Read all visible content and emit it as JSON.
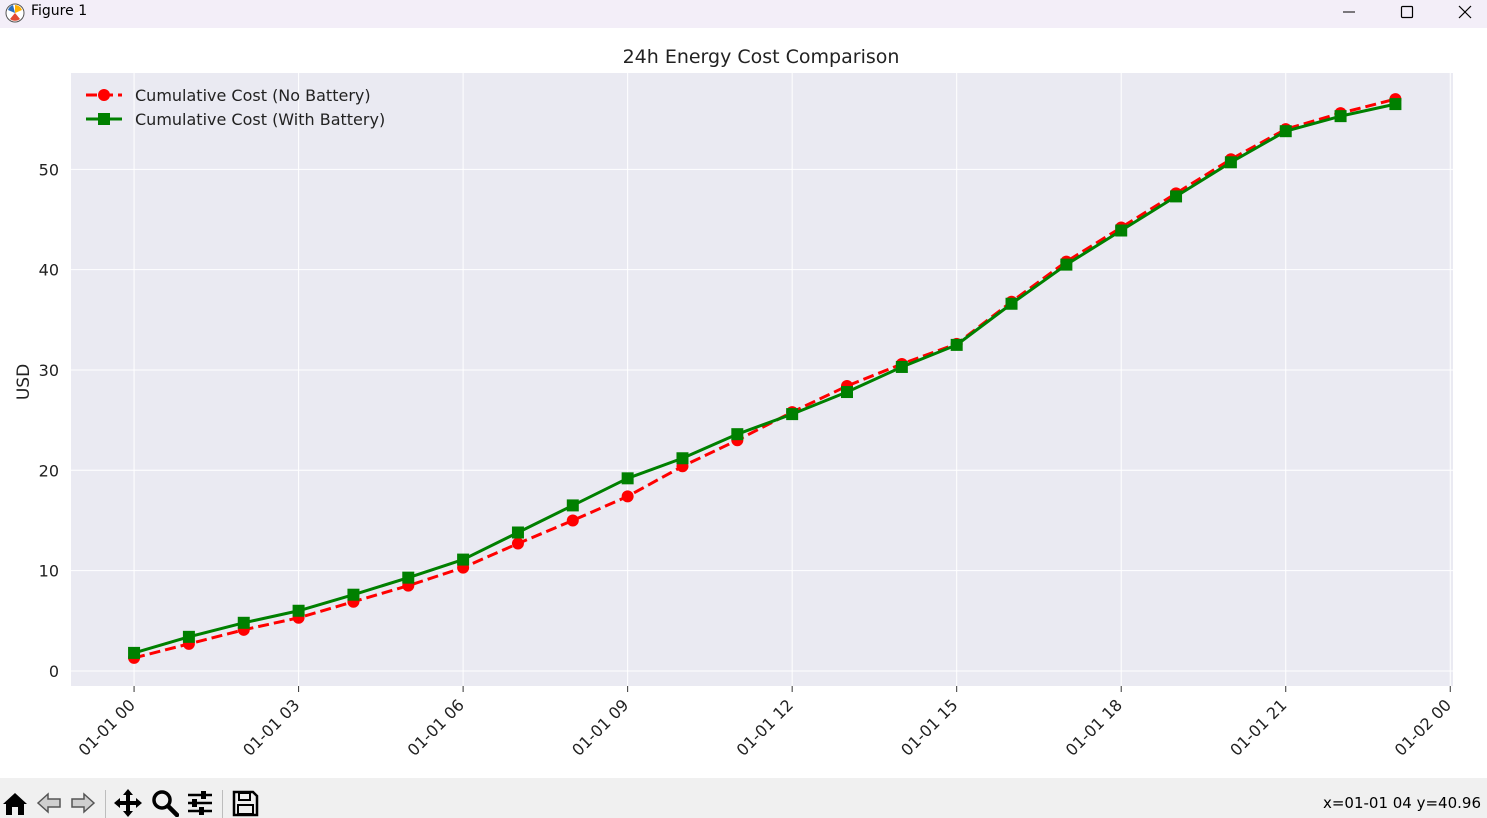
{
  "window": {
    "title": "Figure 1",
    "icons": [
      "matplotlib-logo-icon",
      "minimize-icon",
      "maximize-icon",
      "close-icon"
    ]
  },
  "colors": {
    "plot_bg": "#eaeaf2",
    "grid": "#ffffff",
    "no_battery": "#ff0000",
    "with_battery": "#008000"
  },
  "toolbar": {
    "icons": [
      "home-icon",
      "back-icon",
      "forward-icon",
      "pan-icon",
      "zoom-icon",
      "configure-subplots-icon",
      "save-icon"
    ],
    "status": "x=01-01 04 y=40.96"
  },
  "chart_data": {
    "type": "line",
    "title": "24h Energy Cost Comparison",
    "xlabel": "",
    "ylabel": "USD",
    "x": [
      "01-01 00",
      "01-01 01",
      "01-01 02",
      "01-01 03",
      "01-01 04",
      "01-01 05",
      "01-01 06",
      "01-01 07",
      "01-01 08",
      "01-01 09",
      "01-01 10",
      "01-01 11",
      "01-01 12",
      "01-01 13",
      "01-01 14",
      "01-01 15",
      "01-01 16",
      "01-01 17",
      "01-01 18",
      "01-01 19",
      "01-01 20",
      "01-01 21",
      "01-01 22",
      "01-01 23"
    ],
    "x_ticks": [
      "01-01 00",
      "01-01 03",
      "01-01 06",
      "01-01 09",
      "01-01 12",
      "01-01 15",
      "01-01 18",
      "01-01 21",
      "01-02 00"
    ],
    "x_range_hours": [
      -1.15,
      24.05
    ],
    "y_ticks": [
      0,
      10,
      20,
      30,
      40,
      50
    ],
    "ylim": [
      -1.5,
      59.6
    ],
    "grid": true,
    "legend": "top-left",
    "series": [
      {
        "name": "Cumulative Cost (No Battery)",
        "style": "dashed",
        "marker": "circle",
        "color": "#ff0000",
        "values": [
          1.3,
          2.7,
          4.1,
          5.3,
          6.9,
          8.5,
          10.3,
          12.7,
          15.0,
          17.4,
          20.4,
          23.0,
          25.8,
          28.4,
          30.6,
          32.6,
          36.8,
          40.8,
          44.2,
          47.6,
          51.0,
          54.0,
          55.6,
          57.0
        ]
      },
      {
        "name": "Cumulative Cost (With Battery)",
        "style": "solid",
        "marker": "square",
        "color": "#008000",
        "values": [
          1.8,
          3.4,
          4.8,
          6.0,
          7.6,
          9.3,
          11.1,
          13.8,
          16.5,
          19.2,
          21.2,
          23.6,
          25.6,
          27.8,
          30.3,
          32.5,
          36.6,
          40.5,
          43.9,
          47.3,
          50.7,
          53.8,
          55.3,
          56.5
        ]
      }
    ]
  }
}
